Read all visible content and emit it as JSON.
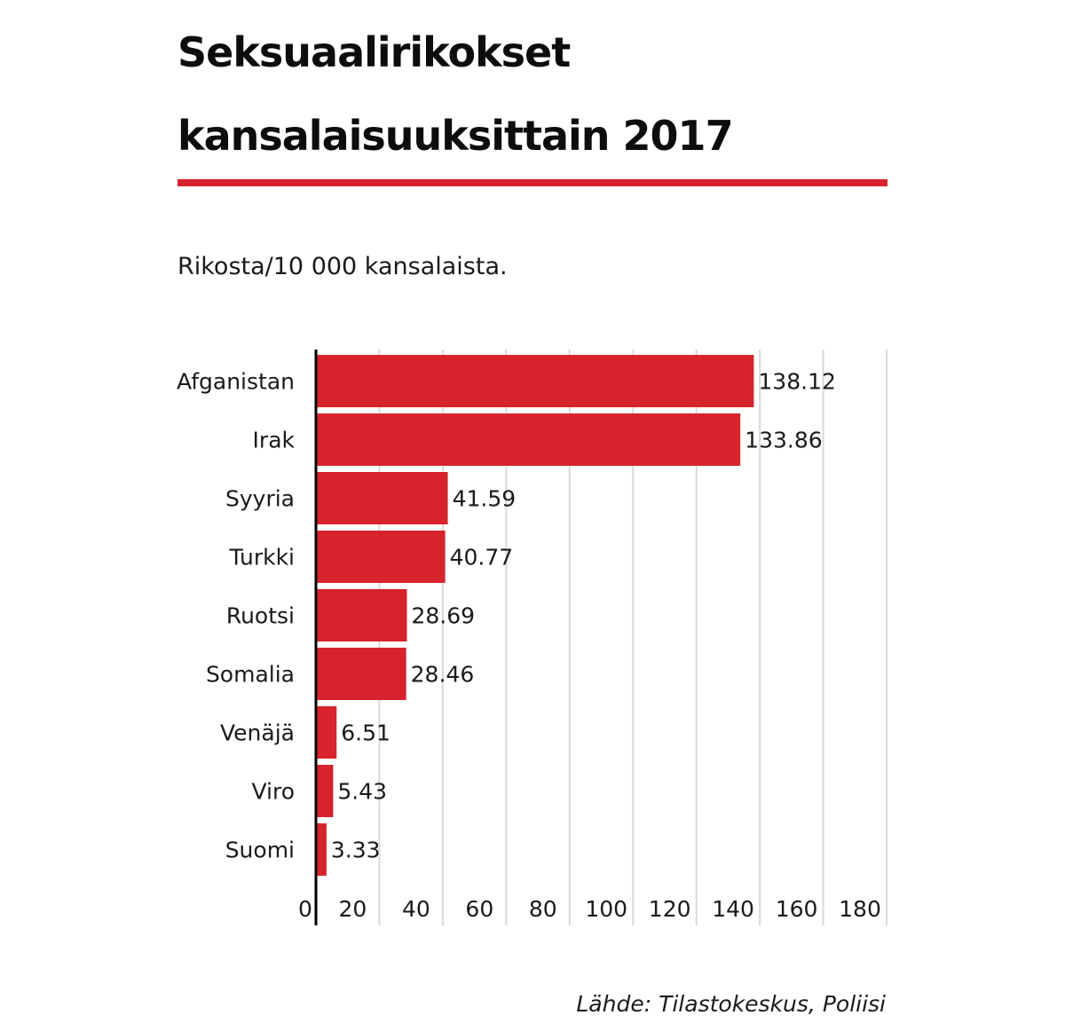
{
  "title_line1": "Seksuaalirikokset",
  "title_line2": "kansalaisuuksittain 2017",
  "subtitle": "Rikosta/10 000 kansalaista.",
  "source": "Lähde: Tilastokeskus, Poliisi",
  "colors": {
    "accent": "#d7232c",
    "bar": "#d7232c",
    "grid": "#d9d9d9",
    "axis": "#000000"
  },
  "chart_data": {
    "type": "bar",
    "orientation": "horizontal",
    "title": "Seksuaalirikokset kansalaisuuksittain 2017",
    "subtitle": "Rikosta/10 000 kansalaista.",
    "categories": [
      "Afganistan",
      "Irak",
      "Syyria",
      "Turkki",
      "Ruotsi",
      "Somalia",
      "Venäjä",
      "Viro",
      "Suomi"
    ],
    "values": [
      138.12,
      133.86,
      41.59,
      40.77,
      28.69,
      28.46,
      6.51,
      5.43,
      3.33
    ],
    "data_labels": [
      "138.12",
      "133.86",
      "41.59",
      "40.77",
      "28.69",
      "28.46",
      "6.51",
      "5.43",
      "3.33"
    ],
    "xlim": [
      0,
      180
    ],
    "xticks": [
      0,
      20,
      40,
      60,
      80,
      100,
      120,
      140,
      160,
      180
    ],
    "grid": true,
    "legend": "none"
  }
}
